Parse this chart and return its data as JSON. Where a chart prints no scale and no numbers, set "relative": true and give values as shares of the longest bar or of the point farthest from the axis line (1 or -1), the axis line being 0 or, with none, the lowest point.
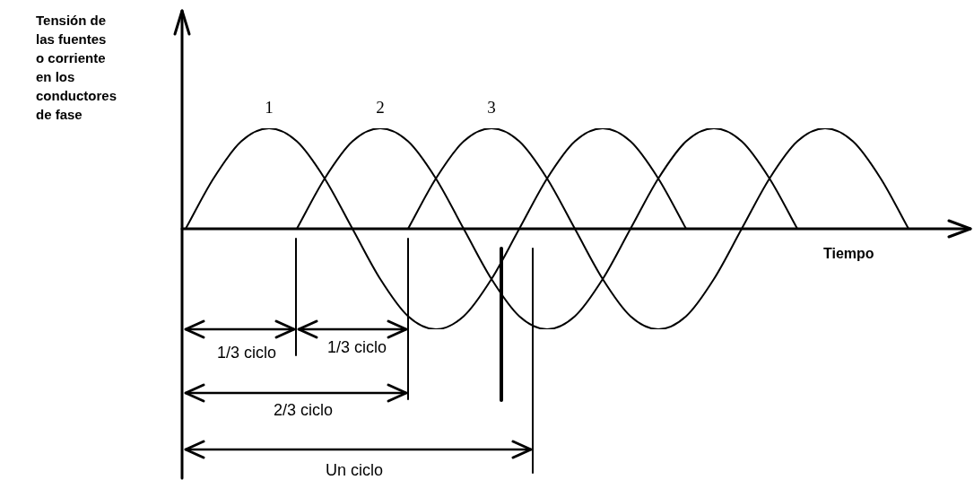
{
  "chart_data": {
    "type": "line",
    "relative": true,
    "xlabel": "Tiempo",
    "ylabel": "Tensión de las fuentes o corriente en los conductores de fase",
    "categories": [
      null,
      null,
      null,
      null,
      null,
      null,
      null,
      null,
      null,
      null,
      null,
      null,
      null,
      null,
      null,
      null,
      null,
      null,
      null,
      null,
      null,
      null,
      null,
      null,
      null,
      null,
      null,
      null,
      null
    ],
    "series": [
      {
        "name": "1",
        "color": "#000000",
        "values": [
          0,
          0.5,
          0.87,
          1,
          0.87,
          0.5,
          0,
          -0.5,
          -0.87,
          -1,
          -0.87,
          -0.5,
          0,
          0.5,
          0.87,
          1,
          0.87,
          0.5,
          0,
          null,
          null,
          null,
          null,
          null,
          null,
          null,
          null,
          null,
          null
        ]
      },
      {
        "name": "2",
        "color": "#000000",
        "values": [
          null,
          null,
          null,
          null,
          0,
          0.5,
          0.87,
          1,
          0.87,
          0.5,
          0,
          -0.5,
          -0.87,
          -1,
          -0.87,
          -0.5,
          0,
          0.5,
          0.87,
          1,
          0.87,
          0.5,
          0,
          null,
          null,
          null,
          null,
          null,
          null
        ]
      },
      {
        "name": "3",
        "color": "#000000",
        "values": [
          null,
          null,
          null,
          null,
          null,
          null,
          null,
          null,
          0,
          0.5,
          0.87,
          1,
          0.87,
          0.5,
          0,
          -0.5,
          -0.87,
          -1,
          -0.87,
          -0.5,
          0,
          0.5,
          0.87,
          1,
          0.87,
          0.5,
          0,
          null,
          null
        ]
      }
    ],
    "annotations": [
      "1/3 ciclo",
      "1/3 ciclo",
      "2/3 ciclo",
      "Un ciclo"
    ],
    "legend": false,
    "marker": "none",
    "line_style": "solid"
  }
}
